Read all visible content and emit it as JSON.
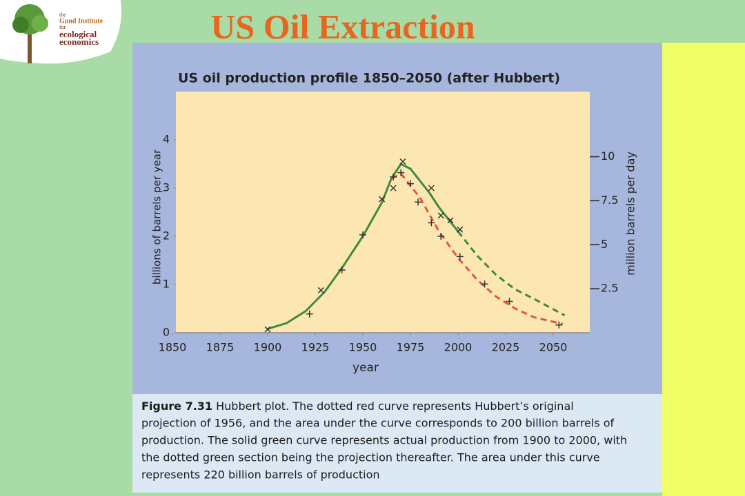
{
  "slide": {
    "title": "US Oil Extraction",
    "logo": {
      "lines": [
        "the",
        "Gund Institute",
        "for",
        "ecological",
        "economics"
      ]
    }
  },
  "chart_data": {
    "type": "line",
    "title": "US oil production profile 1850–2050 (after Hubbert)",
    "xlabel": "year",
    "ylabel": "billions of barrels per year",
    "y2label": "million barrels per day",
    "xlim": [
      1850,
      2070
    ],
    "xticks": [
      1850,
      1875,
      1900,
      1925,
      1950,
      1975,
      2000,
      2025,
      2050
    ],
    "ylim": [
      0,
      5
    ],
    "yticks": [
      0,
      1,
      2,
      3,
      4
    ],
    "y2lim": [
      0,
      13.7
    ],
    "y2ticks": [
      2.5,
      5,
      7.5,
      10
    ],
    "series": [
      {
        "color": "#3f8a3a",
        "dash": false,
        "x": [
          1900,
          1910,
          1920,
          1930,
          1940,
          1950,
          1960,
          1965,
          1970,
          1975,
          1980,
          1985,
          1990,
          1995,
          2000
        ],
        "values": [
          0.08,
          0.2,
          0.45,
          0.85,
          1.4,
          2.0,
          2.7,
          3.2,
          3.5,
          3.4,
          3.15,
          2.9,
          2.6,
          2.35,
          2.1
        ]
      },
      {
        "color": "#3f8a3a",
        "dash": true,
        "x": [
          2000,
          2010,
          2020,
          2030,
          2040,
          2056
        ],
        "values": [
          2.1,
          1.6,
          1.2,
          0.9,
          0.7,
          0.36
        ]
      },
      {
        "color": "#e4573a",
        "dash": true,
        "x": [
          1965,
          1970,
          1980,
          1990,
          2000,
          2010,
          2020,
          2030,
          2040,
          2055
        ],
        "values": [
          3.2,
          3.3,
          2.8,
          2.1,
          1.55,
          1.1,
          0.75,
          0.5,
          0.32,
          0.18
        ]
      },
      {
        "color": "#333333",
        "marker": "x",
        "x": [
          1900,
          1928,
          1960,
          1966,
          1971,
          1986,
          1991,
          1996,
          2001
        ],
        "values": [
          0.07,
          0.88,
          2.77,
          3.0,
          3.55,
          3.0,
          2.43,
          2.33,
          2.14
        ]
      },
      {
        "color": "#333333",
        "marker": "+",
        "x": [
          1922,
          1939,
          1950,
          1966,
          1970,
          1975,
          1979,
          1986,
          1991,
          2001,
          2014,
          2027,
          2053
        ],
        "values": [
          0.39,
          1.3,
          2.03,
          3.23,
          3.32,
          3.09,
          2.71,
          2.28,
          2.0,
          1.58,
          1.01,
          0.65,
          0.16
        ]
      }
    ],
    "caption": {
      "label": "Figure 7.31",
      "lines": [
        " Hubbert plot. The dotted red curve represents Hubbert’s original",
        "projection of 1956, and the area under the curve corresponds to 200 billion barrels of",
        "production. The solid green curve represents actual production from 1900 to 2000, with",
        "the dotted green section being the projection thereafter. The area under this curve",
        "represents 220 billion barrels of production"
      ]
    }
  }
}
